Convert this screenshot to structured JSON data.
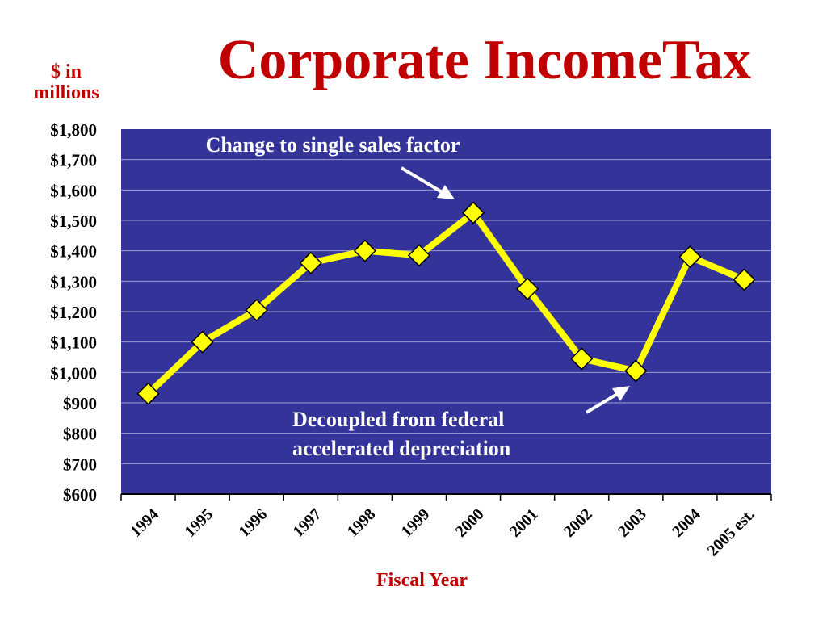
{
  "title": "Corporate IncomeTax",
  "colors": {
    "title": "#c00000",
    "plot_background": "#333399",
    "line": "#ffff00",
    "marker": "#ffff00",
    "marker_stroke": "#000000",
    "annotation_text": "#ffffff",
    "arrow": "#ffffff",
    "gridline": "#a0a0d0"
  },
  "chart_data": {
    "type": "line",
    "title": "Corporate IncomeTax",
    "xlabel": "Fiscal Year",
    "ylabel": "$ in millions",
    "categories": [
      "1994",
      "1995",
      "1996",
      "1997",
      "1998",
      "1999",
      "2000",
      "2001",
      "2002",
      "2003",
      "2004",
      "2005 est."
    ],
    "series": [
      {
        "values": [
          930,
          1100,
          1205,
          1360,
          1400,
          1385,
          1525,
          1275,
          1045,
          1005,
          1380,
          1305
        ]
      }
    ],
    "ylim": [
      600,
      1800
    ],
    "yticks": [
      "$600",
      "$700",
      "$800",
      "$900",
      "$1,000",
      "$1,100",
      "$1,200",
      "$1,300",
      "$1,400",
      "$1,500",
      "$1,600",
      "$1,700",
      "$1,800"
    ],
    "grid": true,
    "annotations": [
      {
        "text_lines": [
          "Change to single sales factor"
        ],
        "points_to": "2000"
      },
      {
        "text_lines": [
          "Decoupled from federal",
          "accelerated depreciation"
        ],
        "points_to": "2003"
      }
    ]
  }
}
